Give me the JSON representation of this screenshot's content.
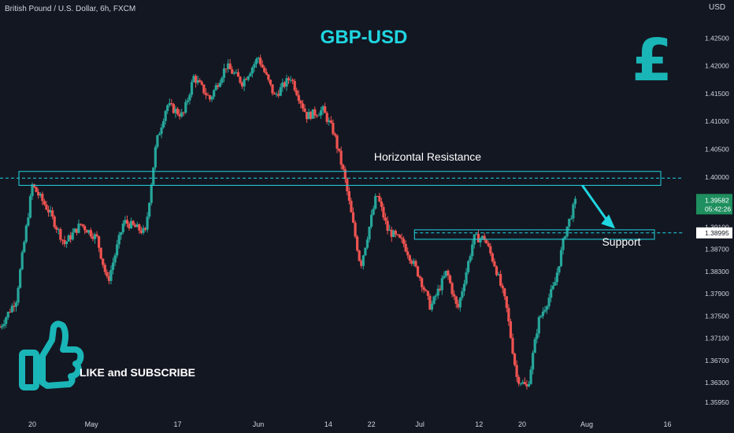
{
  "header": {
    "symbol": "British Pound / U.S. Dollar, 6h, FXCM",
    "currency": "USD"
  },
  "colors": {
    "background": "#131722",
    "up": "#26a69a",
    "down": "#ef5350",
    "accent": "#1fd6e0",
    "text": "#ffffff",
    "axis_text": "#d1d4dc",
    "price_badge_bg": "#1e8f5e"
  },
  "chart_data": {
    "type": "candlestick",
    "title": "GBP-USD",
    "instrument": "British Pound / U.S. Dollar, 6h, FXCM",
    "currency": "USD",
    "ylim": [
      1.3575,
      1.429
    ],
    "y_ticks": [
      "1.42500",
      "1.42000",
      "1.41500",
      "1.41000",
      "1.40500",
      "1.40000",
      "1.39100",
      "1.38700",
      "1.38300",
      "1.37900",
      "1.37500",
      "1.37100",
      "1.36700",
      "1.36300",
      "1.35950"
    ],
    "x_ticks": [
      "20",
      "May",
      "17",
      "Jun",
      "14",
      "22",
      "Jul",
      "12",
      "20",
      "Aug",
      "16"
    ],
    "x_range": [
      "2021-04-14",
      "2021-08-19"
    ],
    "grid": false,
    "close_path": [
      [
        "2021-04-14",
        1.373
      ],
      [
        "2021-04-17",
        1.378
      ],
      [
        "2021-04-20",
        1.3985
      ],
      [
        "2021-04-23",
        1.394
      ],
      [
        "2021-04-26",
        1.388
      ],
      [
        "2021-04-29",
        1.3915
      ],
      [
        "2021-05-02",
        1.389
      ],
      [
        "2021-05-04",
        1.381
      ],
      [
        "2021-05-07",
        1.392
      ],
      [
        "2021-05-11",
        1.39
      ],
      [
        "2021-05-13",
        1.406
      ],
      [
        "2021-05-15",
        1.413
      ],
      [
        "2021-05-18",
        1.411
      ],
      [
        "2021-05-20",
        1.418
      ],
      [
        "2021-05-23",
        1.414
      ],
      [
        "2021-05-26",
        1.42
      ],
      [
        "2021-05-29",
        1.417
      ],
      [
        "2021-06-01",
        1.4215
      ],
      [
        "2021-06-04",
        1.4145
      ],
      [
        "2021-06-07",
        1.418
      ],
      [
        "2021-06-10",
        1.411
      ],
      [
        "2021-06-13",
        1.412
      ],
      [
        "2021-06-15",
        1.408
      ],
      [
        "2021-06-17",
        1.4
      ],
      [
        "2021-06-20",
        1.384
      ],
      [
        "2021-06-23",
        1.397
      ],
      [
        "2021-06-25",
        1.3905
      ],
      [
        "2021-06-28",
        1.388
      ],
      [
        "2021-07-01",
        1.382
      ],
      [
        "2021-07-03",
        1.3765
      ],
      [
        "2021-07-06",
        1.383
      ],
      [
        "2021-07-08",
        1.376
      ],
      [
        "2021-07-11",
        1.389
      ],
      [
        "2021-07-13",
        1.389
      ],
      [
        "2021-07-15",
        1.384
      ],
      [
        "2021-07-17",
        1.377
      ],
      [
        "2021-07-19",
        1.364
      ],
      [
        "2021-07-21",
        1.362
      ],
      [
        "2021-07-23",
        1.374
      ],
      [
        "2021-07-26",
        1.3805
      ],
      [
        "2021-07-28",
        1.39
      ],
      [
        "2021-07-30",
        1.3958
      ]
    ],
    "last_price": "1.39582",
    "countdown": "05:42:26",
    "support_price": "1.38995",
    "resistance_zone": [
      1.3985,
      1.401
    ],
    "support_zone": [
      1.3888,
      1.3905
    ],
    "support_zone_start": "2021-06-30",
    "resistance_dashed": 1.3998,
    "support_dashed": 1.38995,
    "arrow_from": [
      "2021-07-30",
      1.3985
    ],
    "arrow_to": [
      "2021-08-06",
      1.391
    ]
  },
  "annotations": {
    "resistance_label": "Horizontal Resistance",
    "support_label": "Support",
    "cta": "LIKE and SUBSCRIBE",
    "pound_symbol": "£"
  }
}
